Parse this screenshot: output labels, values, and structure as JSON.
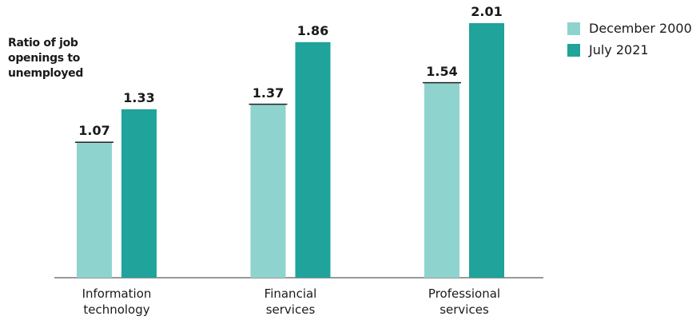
{
  "chart_data": {
    "type": "bar",
    "title": "Ratio of job openings to unemployed",
    "categories": [
      "Information technology",
      "Financial services",
      "Professional services"
    ],
    "series": [
      {
        "name": "December 2000",
        "color": "#8fd3ce",
        "values": [
          1.07,
          1.37,
          1.54
        ]
      },
      {
        "name": "July 2021",
        "color": "#1fa39b",
        "values": [
          1.33,
          1.86,
          2.01
        ]
      }
    ],
    "legend": "top-right"
  }
}
